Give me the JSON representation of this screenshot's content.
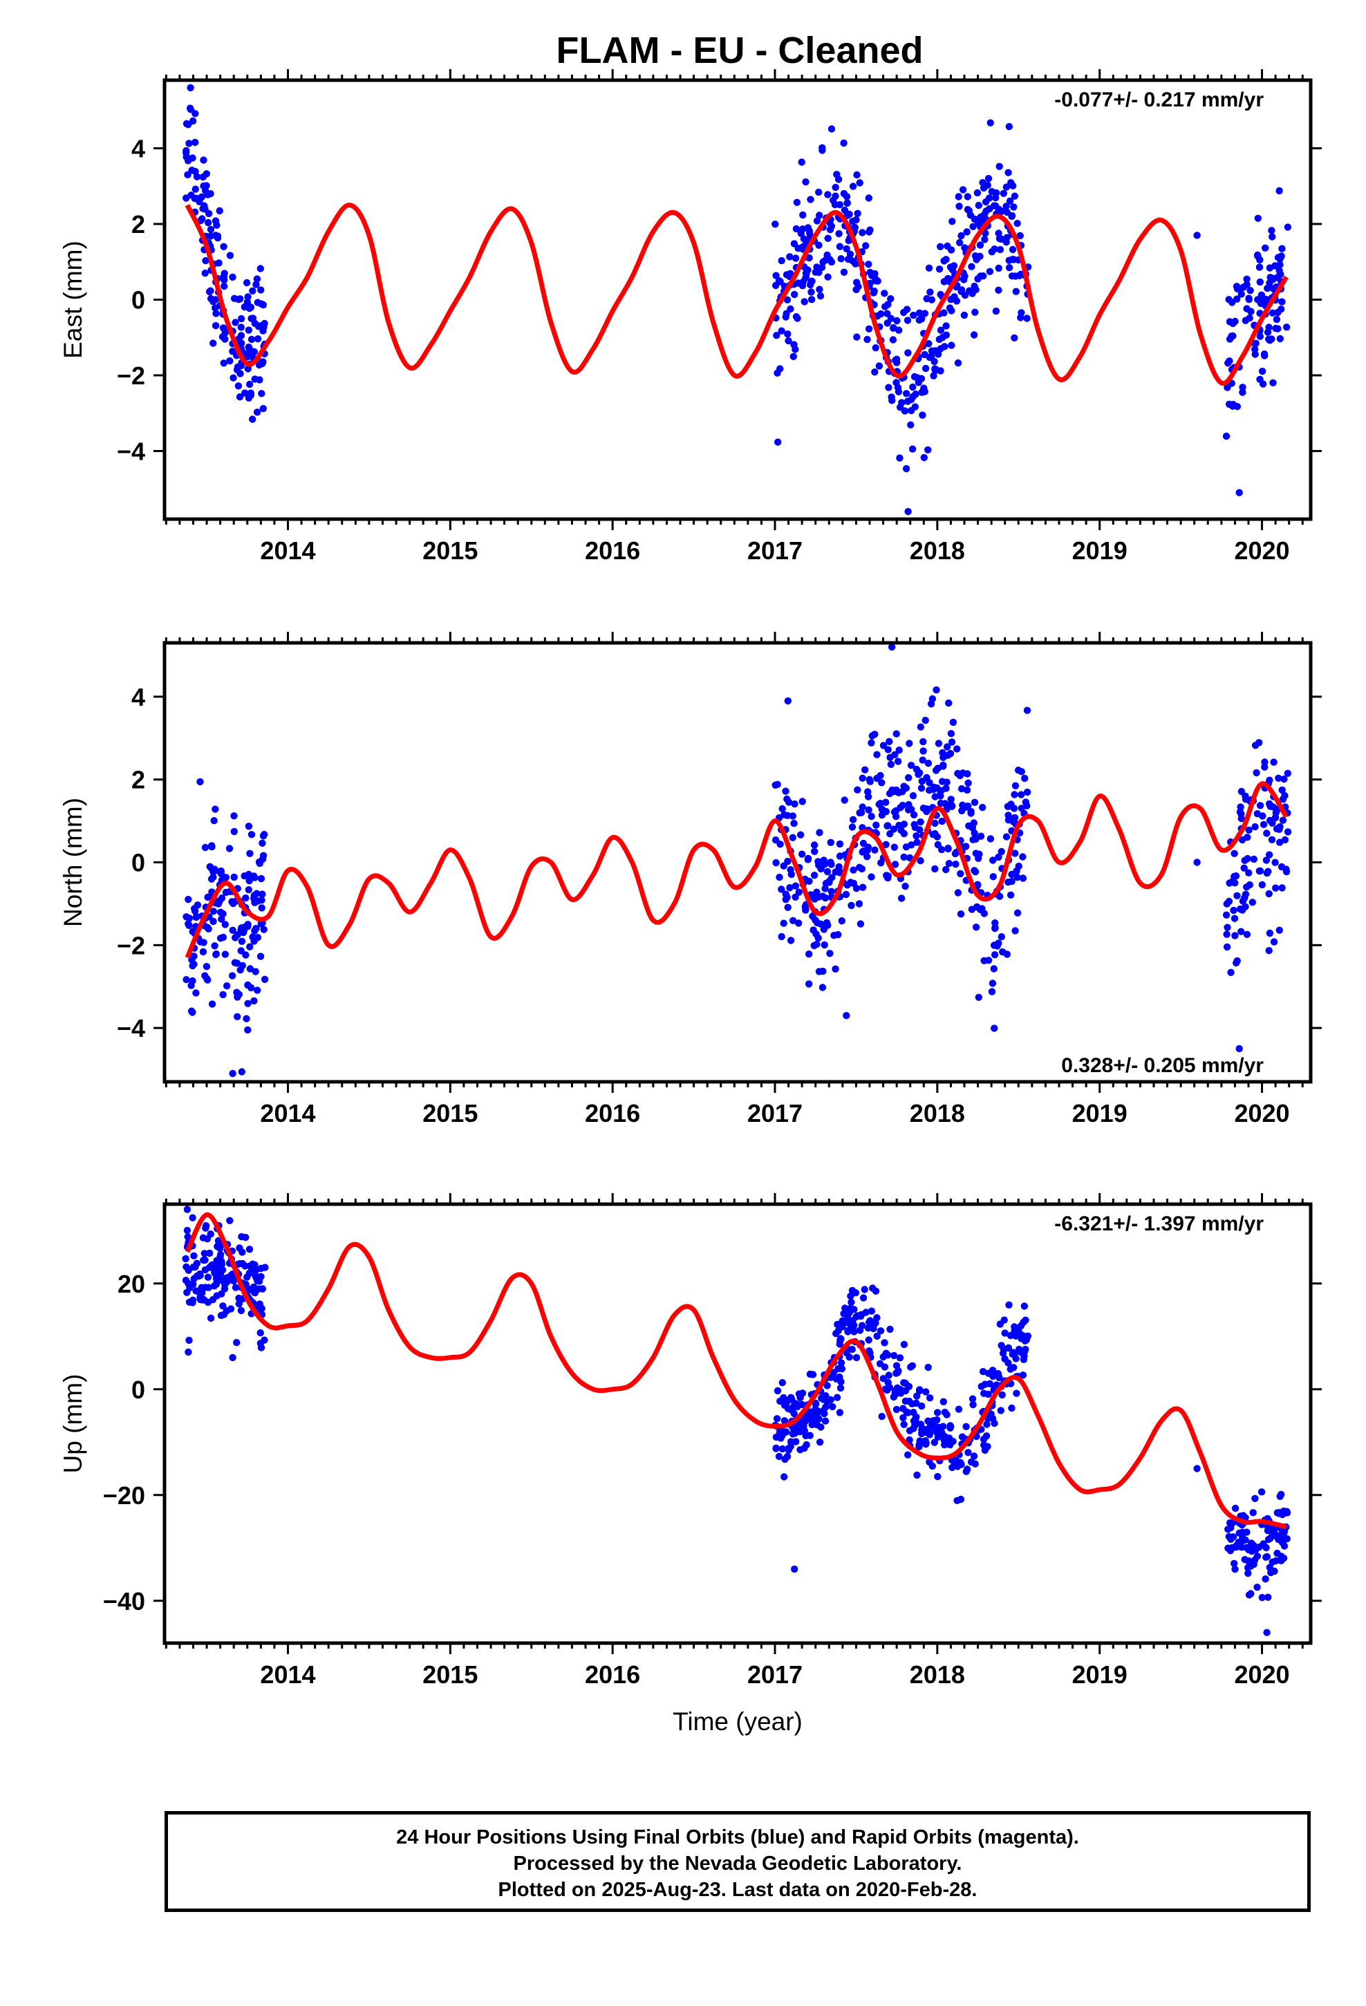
{
  "title": "FLAM  - EU - Cleaned",
  "footer": {
    "line1": "24 Hour Positions Using Final Orbits (blue) and Rapid Orbits (magenta).",
    "line2": "Processed by the Nevada Geodetic Laboratory.",
    "line3": "Plotted on 2025-Aug-23. Last data on 2020-Feb-28."
  },
  "colors": {
    "points": "#0000ff",
    "model": "#ff0000",
    "frame": "#000000"
  },
  "chart_data": [
    {
      "type": "scatter",
      "ylabel": "East (mm)",
      "xlabel": "",
      "rate": "-0.077+/- 0.217 mm/yr",
      "rate_position": "top-right",
      "xlim": [
        2013.24,
        2020.3
      ],
      "ylim": [
        -5.8,
        5.8
      ],
      "xticks": [
        2014,
        2015,
        2016,
        2017,
        2018,
        2019,
        2020
      ],
      "xtick_labels": [
        "2014",
        "2015",
        "2016",
        "2017",
        "2018",
        "2019",
        "2020"
      ],
      "yticks": [
        -4,
        -2,
        0,
        2,
        4
      ],
      "ytick_labels": [
        "−4",
        "−2",
        "0",
        "2",
        "4"
      ],
      "model": {
        "x": [
          2013.38,
          2013.5,
          2013.62,
          2013.75,
          2013.88,
          2014.0,
          2014.12,
          2014.25,
          2014.38,
          2014.5,
          2014.62,
          2014.75,
          2014.88,
          2015.0,
          2015.12,
          2015.25,
          2015.38,
          2015.5,
          2015.62,
          2015.75,
          2015.88,
          2016.0,
          2016.12,
          2016.25,
          2016.38,
          2016.5,
          2016.62,
          2016.75,
          2016.88,
          2017.0,
          2017.12,
          2017.25,
          2017.38,
          2017.5,
          2017.62,
          2017.75,
          2017.88,
          2018.0,
          2018.12,
          2018.25,
          2018.38,
          2018.5,
          2018.62,
          2018.75,
          2018.88,
          2019.0,
          2019.12,
          2019.25,
          2019.38,
          2019.5,
          2019.62,
          2019.75,
          2019.88,
          2020.0,
          2020.15
        ],
        "y": [
          2.5,
          1.4,
          -0.5,
          -1.7,
          -1.1,
          -0.2,
          0.6,
          1.8,
          2.5,
          1.7,
          -0.6,
          -1.8,
          -1.2,
          -0.3,
          0.6,
          1.8,
          2.4,
          1.5,
          -0.6,
          -1.9,
          -1.3,
          -0.3,
          0.6,
          1.8,
          2.3,
          1.5,
          -0.6,
          -2.0,
          -1.4,
          -0.3,
          0.6,
          1.7,
          2.3,
          1.4,
          -0.7,
          -2.0,
          -1.4,
          -0.3,
          0.6,
          1.7,
          2.2,
          1.4,
          -0.8,
          -2.1,
          -1.5,
          -0.4,
          0.5,
          1.6,
          2.1,
          1.3,
          -0.9,
          -2.2,
          -1.5,
          -0.5,
          0.6
        ]
      },
      "segments": [
        {
          "start": 2013.37,
          "end": 2013.86,
          "anchors": [
            [
              2013.37,
              4.2
            ],
            [
              2013.45,
              2.8
            ],
            [
              2013.55,
              0.8
            ],
            [
              2013.65,
              -0.6
            ],
            [
              2013.75,
              -1.2
            ],
            [
              2013.86,
              -0.8
            ]
          ],
          "n": 170,
          "sd": 0.9
        },
        {
          "start": 2017.0,
          "end": 2018.56,
          "anchors": [
            [
              2017.0,
              -0.6
            ],
            [
              2017.15,
              0.6
            ],
            [
              2017.3,
              1.8
            ],
            [
              2017.4,
              2.2
            ],
            [
              2017.55,
              0.9
            ],
            [
              2017.7,
              -1.6
            ],
            [
              2017.85,
              -2.2
            ],
            [
              2018.0,
              -0.6
            ],
            [
              2018.15,
              0.8
            ],
            [
              2018.3,
              1.9
            ],
            [
              2018.4,
              2.4
            ],
            [
              2018.56,
              0.3
            ]
          ],
          "n": 430,
          "sd": 0.95
        },
        {
          "start": 2019.78,
          "end": 2020.16,
          "anchors": [
            [
              2019.78,
              -1.8
            ],
            [
              2019.9,
              -0.8
            ],
            [
              2020.0,
              -0.2
            ],
            [
              2020.16,
              0.8
            ]
          ],
          "n": 110,
          "sd": 1.0
        }
      ],
      "extra_points": [
        [
          2019.6,
          1.7
        ],
        [
          2019.86,
          -5.1
        ],
        [
          2017.82,
          -5.6
        ],
        [
          2013.4,
          5.6
        ]
      ]
    },
    {
      "type": "scatter",
      "ylabel": "North (mm)",
      "xlabel": "",
      "rate": "0.328+/- 0.205 mm/yr",
      "rate_position": "bottom-right",
      "xlim": [
        2013.24,
        2020.3
      ],
      "ylim": [
        -5.3,
        5.3
      ],
      "xticks": [
        2014,
        2015,
        2016,
        2017,
        2018,
        2019,
        2020
      ],
      "xtick_labels": [
        "2014",
        "2015",
        "2016",
        "2017",
        "2018",
        "2019",
        "2020"
      ],
      "yticks": [
        -4,
        -2,
        0,
        2,
        4
      ],
      "ytick_labels": [
        "−4",
        "−2",
        "0",
        "2",
        "4"
      ],
      "model": {
        "x": [
          2013.38,
          2013.5,
          2013.62,
          2013.75,
          2013.88,
          2014.0,
          2014.12,
          2014.25,
          2014.38,
          2014.5,
          2014.62,
          2014.75,
          2014.88,
          2015.0,
          2015.12,
          2015.25,
          2015.38,
          2015.5,
          2015.62,
          2015.75,
          2015.88,
          2016.0,
          2016.12,
          2016.25,
          2016.38,
          2016.5,
          2016.62,
          2016.75,
          2016.88,
          2017.0,
          2017.12,
          2017.25,
          2017.38,
          2017.5,
          2017.62,
          2017.75,
          2017.88,
          2018.0,
          2018.12,
          2018.25,
          2018.38,
          2018.5,
          2018.62,
          2018.75,
          2018.88,
          2019.0,
          2019.12,
          2019.25,
          2019.38,
          2019.5,
          2019.62,
          2019.75,
          2019.88,
          2020.0,
          2020.15
        ],
        "y": [
          -2.3,
          -1.2,
          -0.5,
          -1.2,
          -1.3,
          -0.2,
          -0.6,
          -2.0,
          -1.5,
          -0.4,
          -0.5,
          -1.2,
          -0.5,
          0.3,
          -0.4,
          -1.8,
          -1.3,
          -0.1,
          0.0,
          -0.9,
          -0.3,
          0.6,
          0.0,
          -1.4,
          -1.0,
          0.3,
          0.3,
          -0.6,
          -0.1,
          1.0,
          0.0,
          -1.2,
          -0.8,
          0.6,
          0.6,
          -0.3,
          0.2,
          1.3,
          0.5,
          -0.8,
          -0.6,
          0.9,
          1.0,
          0.0,
          0.5,
          1.6,
          0.8,
          -0.5,
          -0.3,
          1.1,
          1.3,
          0.3,
          0.8,
          1.9,
          1.1
        ]
      },
      "segments": [
        {
          "start": 2013.37,
          "end": 2013.86,
          "anchors": [
            [
              2013.37,
              -1.8
            ],
            [
              2013.5,
              -1.4
            ],
            [
              2013.6,
              -1.0
            ],
            [
              2013.7,
              -2.0
            ],
            [
              2013.78,
              -1.6
            ],
            [
              2013.86,
              -0.5
            ]
          ],
          "n": 170,
          "sd": 1.1
        },
        {
          "start": 2017.0,
          "end": 2018.56,
          "anchors": [
            [
              2017.0,
              1.0
            ],
            [
              2017.1,
              -0.2
            ],
            [
              2017.25,
              -1.2
            ],
            [
              2017.4,
              -0.6
            ],
            [
              2017.55,
              0.6
            ],
            [
              2017.7,
              1.3
            ],
            [
              2017.85,
              1.2
            ],
            [
              2018.0,
              1.8
            ],
            [
              2018.12,
              1.4
            ],
            [
              2018.25,
              -0.6
            ],
            [
              2018.35,
              -1.4
            ],
            [
              2018.45,
              0.2
            ],
            [
              2018.56,
              1.6
            ]
          ],
          "n": 430,
          "sd": 1.0
        },
        {
          "start": 2019.78,
          "end": 2020.16,
          "anchors": [
            [
              2019.78,
              -1.2
            ],
            [
              2019.9,
              -0.3
            ],
            [
              2020.0,
              0.8
            ],
            [
              2020.16,
              0.6
            ]
          ],
          "n": 110,
          "sd": 1.1
        }
      ],
      "extra_points": [
        [
          2019.6,
          0.0
        ],
        [
          2017.72,
          5.2
        ],
        [
          2019.86,
          -4.5
        ],
        [
          2017.44,
          -3.7
        ],
        [
          2017.08,
          3.9
        ],
        [
          2013.66,
          -5.1
        ]
      ]
    },
    {
      "type": "scatter",
      "ylabel": "Up (mm)",
      "xlabel": "Time (year)",
      "rate": "-6.321+/- 1.397 mm/yr",
      "rate_position": "top-right",
      "xlim": [
        2013.24,
        2020.3
      ],
      "ylim": [
        -48,
        35
      ],
      "xticks": [
        2014,
        2015,
        2016,
        2017,
        2018,
        2019,
        2020
      ],
      "xtick_labels": [
        "2014",
        "2015",
        "2016",
        "2017",
        "2018",
        "2019",
        "2020"
      ],
      "yticks": [
        -40,
        -20,
        0,
        20
      ],
      "ytick_labels": [
        "−40",
        "−20",
        "0",
        "20"
      ],
      "model": {
        "x": [
          2013.38,
          2013.5,
          2013.62,
          2013.75,
          2013.88,
          2014.0,
          2014.12,
          2014.25,
          2014.38,
          2014.5,
          2014.62,
          2014.75,
          2014.88,
          2015.0,
          2015.12,
          2015.25,
          2015.38,
          2015.5,
          2015.62,
          2015.75,
          2015.88,
          2016.0,
          2016.12,
          2016.25,
          2016.38,
          2016.5,
          2016.62,
          2016.75,
          2016.88,
          2017.0,
          2017.12,
          2017.25,
          2017.38,
          2017.5,
          2017.62,
          2017.75,
          2017.88,
          2018.0,
          2018.12,
          2018.25,
          2018.38,
          2018.5,
          2018.62,
          2018.75,
          2018.88,
          2019.0,
          2019.12,
          2019.25,
          2019.38,
          2019.5,
          2019.62,
          2019.75,
          2019.88,
          2020.0,
          2020.15
        ],
        "y": [
          26,
          33,
          27,
          17,
          12,
          12,
          13,
          19,
          27,
          25,
          15,
          8,
          6,
          6,
          7,
          13,
          21,
          20,
          10,
          3,
          0,
          0,
          1,
          6,
          14,
          15,
          6,
          -2,
          -6,
          -7,
          -6,
          -1,
          6,
          9,
          2,
          -8,
          -12,
          -13,
          -12,
          -7,
          0,
          2,
          -5,
          -14,
          -19,
          -19,
          -18,
          -13,
          -6,
          -4,
          -12,
          -22,
          -25,
          -25,
          -26
        ]
      },
      "segments": [
        {
          "start": 2013.37,
          "end": 2013.86,
          "anchors": [
            [
              2013.37,
              22
            ],
            [
              2013.5,
              22
            ],
            [
              2013.62,
              24
            ],
            [
              2013.75,
              20
            ],
            [
              2013.86,
              14
            ]
          ],
          "n": 170,
          "sd": 4.5
        },
        {
          "start": 2017.0,
          "end": 2018.56,
          "anchors": [
            [
              2017.0,
              -6
            ],
            [
              2017.15,
              -7
            ],
            [
              2017.3,
              -2
            ],
            [
              2017.45,
              10
            ],
            [
              2017.55,
              14
            ],
            [
              2017.7,
              5
            ],
            [
              2017.85,
              -6
            ],
            [
              2018.0,
              -8
            ],
            [
              2018.15,
              -12
            ],
            [
              2018.3,
              -5
            ],
            [
              2018.45,
              6
            ],
            [
              2018.56,
              8
            ]
          ],
          "n": 430,
          "sd": 4.2
        },
        {
          "start": 2019.78,
          "end": 2020.16,
          "anchors": [
            [
              2019.78,
              -28
            ],
            [
              2019.9,
              -30
            ],
            [
              2020.0,
              -32
            ],
            [
              2020.16,
              -27
            ]
          ],
          "n": 110,
          "sd": 4.0
        }
      ],
      "extra_points": [
        [
          2019.6,
          -15
        ],
        [
          2017.12,
          -34
        ],
        [
          2020.03,
          -46
        ],
        [
          2013.38,
          34
        ],
        [
          2013.66,
          6
        ]
      ]
    }
  ]
}
